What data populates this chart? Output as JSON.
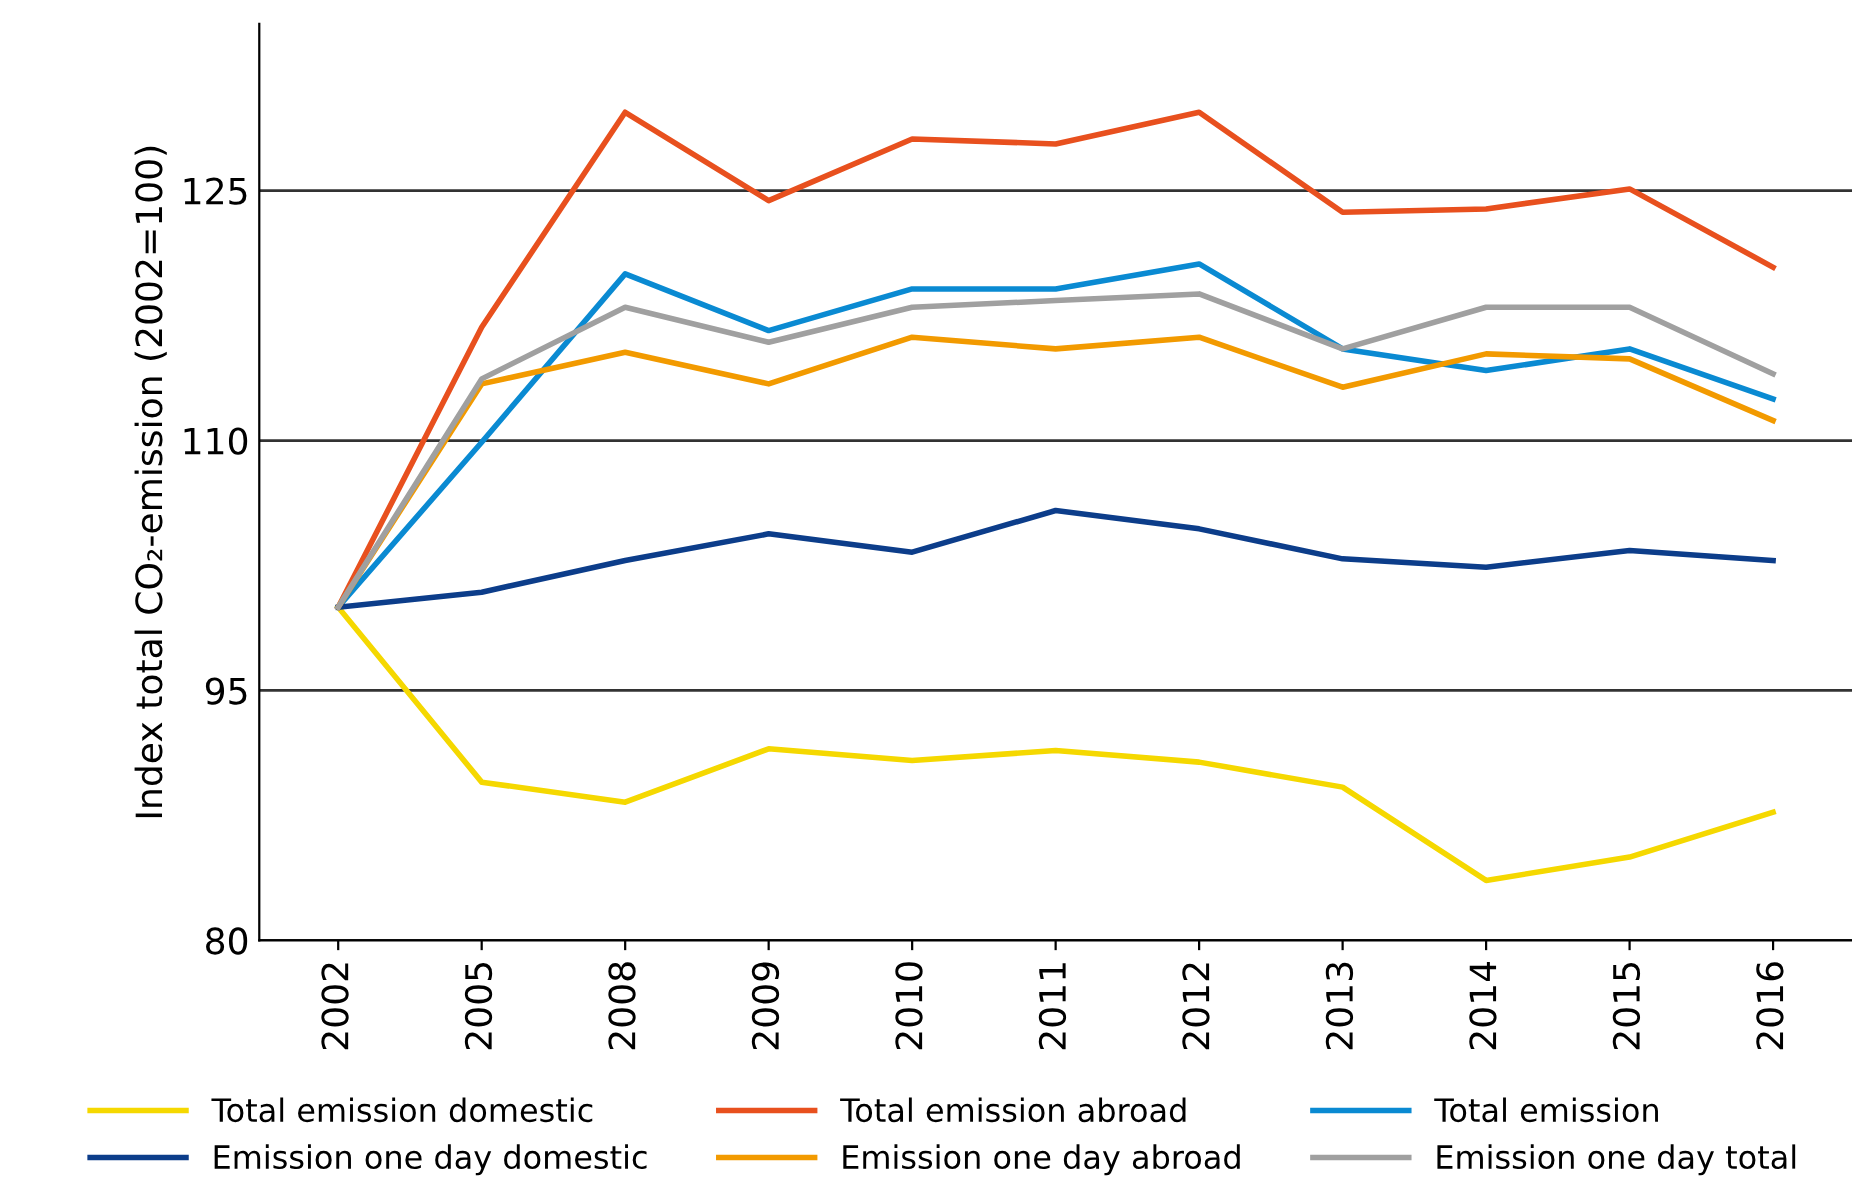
{
  "chart_data": {
    "type": "line",
    "ylabel": "Index total CO₂-emission (2002=100)",
    "categories": [
      "2002",
      "2005",
      "2008",
      "2009",
      "2010",
      "2011",
      "2012",
      "2013",
      "2014",
      "2015",
      "2016"
    ],
    "series": [
      {
        "name": "Total emission domestic",
        "color": "#f5d800",
        "values": [
          100,
          89.5,
          88.3,
          91.5,
          90.8,
          91.4,
          90.7,
          89.2,
          83.6,
          85.0,
          87.7
        ]
      },
      {
        "name": "Total emission abroad",
        "color": "#e8501e",
        "values": [
          100,
          116.8,
          129.7,
          124.4,
          128.1,
          127.8,
          129.7,
          123.7,
          123.9,
          125.1,
          120.4
        ]
      },
      {
        "name": "Total emission",
        "color": "#0a8ad2",
        "values": [
          100,
          109.9,
          120.0,
          116.6,
          119.1,
          119.1,
          120.6,
          115.5,
          114.2,
          115.5,
          112.5
        ]
      },
      {
        "name": "Emission one day domestic",
        "color": "#0c3d8a",
        "values": [
          100,
          100.9,
          102.8,
          104.4,
          103.3,
          105.8,
          104.7,
          102.9,
          102.4,
          103.4,
          102.8
        ]
      },
      {
        "name": "Emission one day abroad",
        "color": "#f29a00",
        "values": [
          100,
          113.4,
          115.3,
          113.4,
          116.2,
          115.5,
          116.2,
          113.2,
          115.2,
          114.9,
          111.2
        ]
      },
      {
        "name": "Emission one day total",
        "color": "#a0a0a0",
        "values": [
          100,
          113.7,
          118.0,
          115.9,
          118.0,
          118.4,
          118.8,
          115.5,
          118.0,
          118.0,
          114.0
        ]
      }
    ],
    "ylim": [
      80,
      135
    ],
    "yticks": [
      80,
      95,
      110,
      125
    ],
    "grid": "y",
    "legend": "bottom",
    "marker": "none",
    "line_style": "solid"
  }
}
